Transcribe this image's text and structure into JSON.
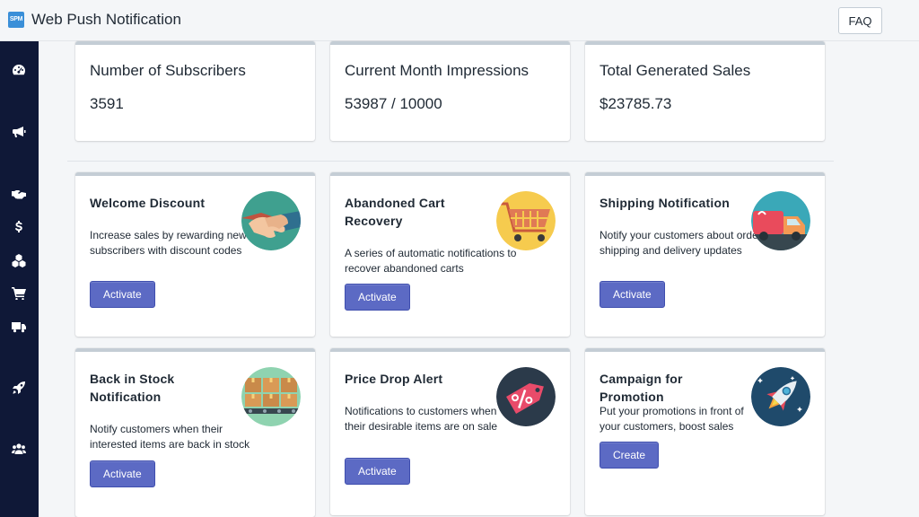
{
  "app": {
    "logo_text": "SPM",
    "title": "Web Push Notification"
  },
  "header": {
    "faq_label": "FAQ"
  },
  "sidebar": {
    "items": [
      {
        "icon": "dashboard-icon"
      },
      {
        "icon": "megaphone-icon"
      },
      {
        "icon": "handshake-icon"
      },
      {
        "icon": "dollar-icon"
      },
      {
        "icon": "cubes-icon"
      },
      {
        "icon": "cart-icon"
      },
      {
        "icon": "truck-icon"
      },
      {
        "icon": "rocket-icon"
      },
      {
        "icon": "users-icon"
      }
    ]
  },
  "stats": [
    {
      "label": "Number of Subscribers",
      "value": "3591"
    },
    {
      "label": "Current Month Impressions",
      "value": "53987 / 10000"
    },
    {
      "label": "Total Generated Sales",
      "value": "$23785.73"
    }
  ],
  "features": [
    {
      "title": "Welcome Discount",
      "description": "Increase sales by rewarding new subscribers with discount codes",
      "button": "Activate",
      "image": "handshake-illustration"
    },
    {
      "title": "Abandoned Cart Recovery",
      "description": "A series of automatic notifications to recover abandoned carts",
      "button": "Activate",
      "image": "shopping-cart-illustration"
    },
    {
      "title": "Shipping Notification",
      "description": "Notify your customers about order shipping and delivery updates",
      "button": "Activate",
      "image": "delivery-truck-illustration"
    },
    {
      "title": "Back in Stock Notification",
      "description": "Notify customers when their interested items are back in stock",
      "button": "Activate",
      "image": "conveyor-boxes-illustration"
    },
    {
      "title": "Price Drop Alert",
      "description": "Notifications to customers when their desirable items are on sale",
      "button": "Activate",
      "image": "percent-tag-illustration"
    },
    {
      "title": "Campaign for Promotion",
      "description": "Put your promotions in front of your customers, boost sales",
      "button": "Create",
      "image": "rocket-illustration"
    }
  ],
  "colors": {
    "sidebar": "#0f1837",
    "primary_button": "#5c6ac4",
    "card_top_border": "#c4cdd5",
    "background": "#f4f6f8"
  }
}
